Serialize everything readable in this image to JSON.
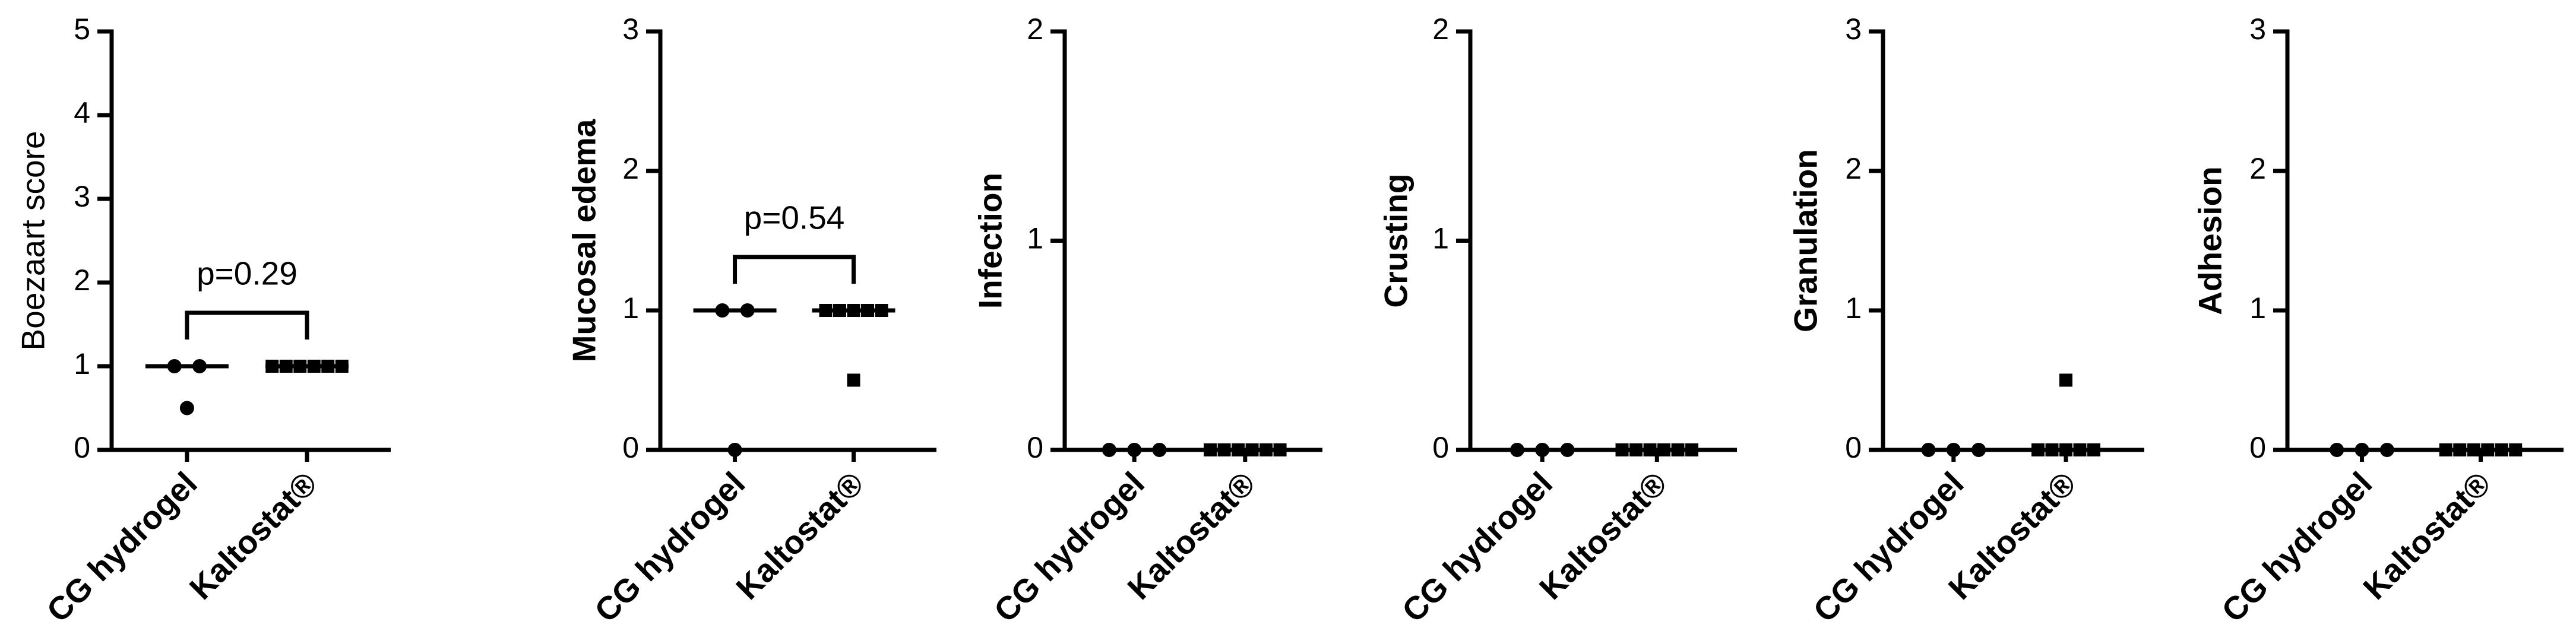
{
  "chart_data": [
    {
      "type": "dotplot",
      "ylabel": "Boezaart score",
      "categories": [
        "CG hydrogel",
        "Kaltostat®"
      ],
      "markers": [
        "circle",
        "square"
      ],
      "color": "#000000",
      "values": [
        [
          1,
          1,
          0.5
        ],
        [
          1,
          1,
          1,
          1,
          1,
          1
        ]
      ],
      "medians": [
        1,
        1
      ],
      "ylim": [
        0,
        5
      ],
      "yticks": [
        0,
        1,
        2,
        3,
        4,
        5
      ],
      "annotation": "p=0.29"
    },
    {
      "type": "dotplot",
      "ylabel": "Mucosal edema",
      "categories": [
        "CG hydrogel",
        "Kaltostat®"
      ],
      "markers": [
        "circle",
        "square"
      ],
      "color": "#000000",
      "values": [
        [
          1,
          1,
          0
        ],
        [
          1,
          1,
          1,
          1,
          1,
          0.5
        ]
      ],
      "medians": [
        1,
        1
      ],
      "ylim": [
        0,
        3
      ],
      "yticks": [
        0,
        1,
        2,
        3
      ],
      "annotation": "p=0.54"
    },
    {
      "type": "dotplot",
      "ylabel": "Infection",
      "categories": [
        "CG hydrogel",
        "Kaltostat®"
      ],
      "markers": [
        "circle",
        "square"
      ],
      "color": "#000000",
      "values": [
        [
          0,
          0,
          0
        ],
        [
          0,
          0,
          0,
          0,
          0,
          0
        ]
      ],
      "medians": [
        0,
        0
      ],
      "ylim": [
        0,
        2
      ],
      "yticks": [
        0,
        1,
        2
      ]
    },
    {
      "type": "dotplot",
      "ylabel": "Crusting",
      "categories": [
        "CG hydrogel",
        "Kaltostat®"
      ],
      "markers": [
        "circle",
        "square"
      ],
      "color": "#000000",
      "values": [
        [
          0,
          0,
          0
        ],
        [
          0,
          0,
          0,
          0,
          0,
          0
        ]
      ],
      "medians": [
        0,
        0
      ],
      "ylim": [
        0,
        2
      ],
      "yticks": [
        0,
        1,
        2
      ]
    },
    {
      "type": "dotplot",
      "ylabel": "Granulation",
      "categories": [
        "CG hydrogel",
        "Kaltostat®"
      ],
      "markers": [
        "circle",
        "square"
      ],
      "color": "#000000",
      "values": [
        [
          0,
          0,
          0
        ],
        [
          0,
          0,
          0,
          0,
          0,
          0.5
        ]
      ],
      "medians": [
        0,
        0
      ],
      "ylim": [
        0,
        3
      ],
      "yticks": [
        0,
        1,
        2,
        3
      ]
    },
    {
      "type": "dotplot",
      "ylabel": "Adhesion",
      "categories": [
        "CG hydrogel",
        "Kaltostat®"
      ],
      "markers": [
        "circle",
        "square"
      ],
      "color": "#000000",
      "values": [
        [
          0,
          0,
          0
        ],
        [
          0,
          0,
          0,
          0,
          0,
          0
        ]
      ],
      "medians": [
        0,
        0
      ],
      "ylim": [
        0,
        3
      ],
      "yticks": [
        0,
        1,
        2,
        3
      ]
    }
  ]
}
